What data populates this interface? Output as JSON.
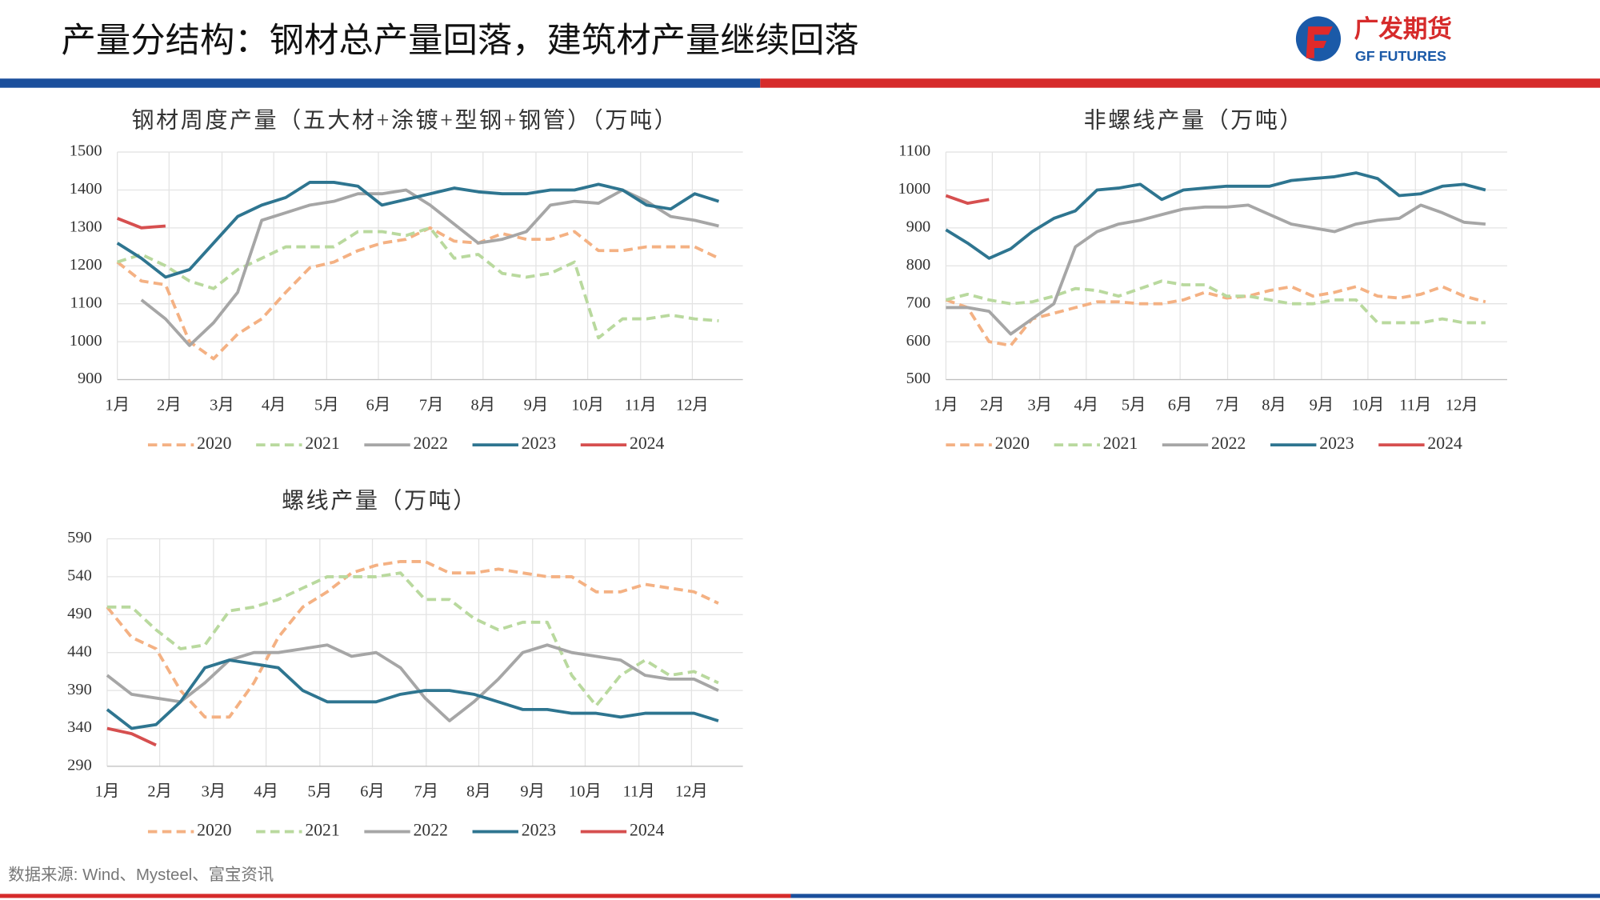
{
  "header": {
    "title": "产量分结构：钢材总产量回落，建筑材产量继续回落",
    "logo_cn": "广发期货",
    "logo_en": "GF FUTURES"
  },
  "source": "数据来源: Wind、Mysteel、富宝资讯",
  "chart_data": [
    {
      "type": "line",
      "title": "钢材周度产量（五大材+涂镀+型钢+钢管）（万吨）",
      "grid": true,
      "x": [
        1,
        3,
        5,
        7,
        9,
        11,
        13,
        15,
        17,
        19,
        21,
        23,
        25,
        27,
        29,
        31,
        33,
        35,
        37,
        39,
        41,
        43,
        45,
        47,
        49,
        51
      ],
      "xlim": [
        1,
        53
      ],
      "xticks": [
        {
          "value": 1,
          "label": "1月"
        },
        {
          "value": 5.3,
          "label": "2月"
        },
        {
          "value": 9.7,
          "label": "3月"
        },
        {
          "value": 14,
          "label": "4月"
        },
        {
          "value": 18.4,
          "label": "5月"
        },
        {
          "value": 22.7,
          "label": "6月"
        },
        {
          "value": 27.1,
          "label": "7月"
        },
        {
          "value": 31.4,
          "label": "8月"
        },
        {
          "value": 35.8,
          "label": "9月"
        },
        {
          "value": 40.1,
          "label": "10月"
        },
        {
          "value": 44.5,
          "label": "11月"
        },
        {
          "value": 48.8,
          "label": "12月"
        }
      ],
      "ylim": [
        900,
        1500
      ],
      "yticks": [
        900,
        1000,
        1100,
        1200,
        1300,
        1400,
        1500
      ],
      "series": [
        {
          "name": "2020",
          "color": "#F4B183",
          "dashed": true,
          "values": [
            1210,
            1160,
            1150,
            1000,
            955,
            1020,
            1060,
            1130,
            1195,
            1210,
            1240,
            1260,
            1270,
            1300,
            1265,
            1260,
            1285,
            1270,
            1270,
            1290,
            1240,
            1240,
            1250,
            1250,
            1250,
            1220
          ]
        },
        {
          "name": "2021",
          "color": "#B9D99E",
          "dashed": true,
          "values": [
            1210,
            1230,
            1200,
            1160,
            1140,
            1190,
            1220,
            1250,
            1250,
            1250,
            1290,
            1290,
            1280,
            1300,
            1220,
            1230,
            1180,
            1170,
            1180,
            1210,
            1010,
            1060,
            1060,
            1070,
            1060,
            1055
          ]
        },
        {
          "name": "2022",
          "color": "#A6A6A6",
          "dashed": false,
          "values": [
            null,
            1110,
            1060,
            990,
            1050,
            1130,
            1320,
            1340,
            1360,
            1370,
            1390,
            1390,
            1400,
            1360,
            1310,
            1260,
            1270,
            1290,
            1360,
            1370,
            1365,
            1400,
            1370,
            1330,
            1320,
            1305
          ]
        },
        {
          "name": "2023",
          "color": "#2E7590",
          "dashed": false,
          "values": [
            1260,
            1220,
            1170,
            1190,
            1260,
            1330,
            1360,
            1380,
            1420,
            1420,
            1410,
            1360,
            1375,
            1390,
            1405,
            1395,
            1390,
            1390,
            1400,
            1400,
            1415,
            1400,
            1360,
            1350,
            1390,
            1370
          ]
        },
        {
          "name": "2024",
          "color": "#D64F4F",
          "dashed": false,
          "values": [
            1325,
            1300,
            1305,
            null,
            null,
            null,
            null,
            null,
            null,
            null,
            null,
            null,
            null,
            null,
            null,
            null,
            null,
            null,
            null,
            null,
            null,
            null,
            null,
            null,
            null,
            null
          ]
        }
      ]
    },
    {
      "type": "line",
      "title": "非螺线产量（万吨）",
      "grid": true,
      "x": [
        1,
        3,
        5,
        7,
        9,
        11,
        13,
        15,
        17,
        19,
        21,
        23,
        25,
        27,
        29,
        31,
        33,
        35,
        37,
        39,
        41,
        43,
        45,
        47,
        49,
        51
      ],
      "xlim": [
        1,
        53
      ],
      "xticks": [
        {
          "value": 1,
          "label": "1月"
        },
        {
          "value": 5.3,
          "label": "2月"
        },
        {
          "value": 9.7,
          "label": "3月"
        },
        {
          "value": 14,
          "label": "4月"
        },
        {
          "value": 18.4,
          "label": "5月"
        },
        {
          "value": 22.7,
          "label": "6月"
        },
        {
          "value": 27.1,
          "label": "7月"
        },
        {
          "value": 31.4,
          "label": "8月"
        },
        {
          "value": 35.8,
          "label": "9月"
        },
        {
          "value": 40.1,
          "label": "10月"
        },
        {
          "value": 44.5,
          "label": "11月"
        },
        {
          "value": 48.8,
          "label": "12月"
        }
      ],
      "ylim": [
        500,
        1100
      ],
      "yticks": [
        500,
        600,
        700,
        800,
        900,
        1000,
        1100
      ],
      "series": [
        {
          "name": "2020",
          "color": "#F4B183",
          "dashed": true,
          "values": [
            710,
            690,
            600,
            590,
            660,
            675,
            690,
            705,
            705,
            700,
            700,
            710,
            730,
            715,
            720,
            735,
            745,
            720,
            730,
            745,
            720,
            715,
            725,
            745,
            720,
            705
          ]
        },
        {
          "name": "2021",
          "color": "#B9D99E",
          "dashed": true,
          "values": [
            710,
            725,
            710,
            700,
            705,
            720,
            740,
            735,
            720,
            740,
            760,
            750,
            750,
            720,
            720,
            710,
            700,
            700,
            710,
            710,
            650,
            650,
            650,
            660,
            650,
            650
          ]
        },
        {
          "name": "2022",
          "color": "#A6A6A6",
          "dashed": false,
          "values": [
            690,
            690,
            680,
            620,
            660,
            700,
            850,
            890,
            910,
            920,
            935,
            950,
            955,
            955,
            960,
            935,
            910,
            900,
            890,
            910,
            920,
            925,
            960,
            940,
            915,
            910
          ]
        },
        {
          "name": "2023",
          "color": "#2E7590",
          "dashed": false,
          "values": [
            895,
            860,
            820,
            845,
            890,
            925,
            945,
            1000,
            1005,
            1015,
            975,
            1000,
            1005,
            1010,
            1010,
            1010,
            1025,
            1030,
            1035,
            1045,
            1030,
            985,
            990,
            1010,
            1015,
            1000
          ]
        },
        {
          "name": "2024",
          "color": "#D64F4F",
          "dashed": false,
          "values": [
            985,
            965,
            975,
            null,
            null,
            null,
            null,
            null,
            null,
            null,
            null,
            null,
            null,
            null,
            null,
            null,
            null,
            null,
            null,
            null,
            null,
            null,
            null,
            null,
            null,
            null
          ]
        }
      ]
    },
    {
      "type": "line",
      "title": "螺线产量（万吨）",
      "grid": true,
      "x": [
        1,
        3,
        5,
        7,
        9,
        11,
        13,
        15,
        17,
        19,
        21,
        23,
        25,
        27,
        29,
        31,
        33,
        35,
        37,
        39,
        41,
        43,
        45,
        47,
        49,
        51
      ],
      "xlim": [
        1,
        53
      ],
      "xticks": [
        {
          "value": 1,
          "label": "1月"
        },
        {
          "value": 5.3,
          "label": "2月"
        },
        {
          "value": 9.7,
          "label": "3月"
        },
        {
          "value": 14,
          "label": "4月"
        },
        {
          "value": 18.4,
          "label": "5月"
        },
        {
          "value": 22.7,
          "label": "6月"
        },
        {
          "value": 27.1,
          "label": "7月"
        },
        {
          "value": 31.4,
          "label": "8月"
        },
        {
          "value": 35.8,
          "label": "9月"
        },
        {
          "value": 40.1,
          "label": "10月"
        },
        {
          "value": 44.5,
          "label": "11月"
        },
        {
          "value": 48.8,
          "label": "12月"
        }
      ],
      "ylim": [
        290,
        590
      ],
      "yticks": [
        290,
        340,
        390,
        440,
        490,
        540,
        590
      ],
      "series": [
        {
          "name": "2020",
          "color": "#F4B183",
          "dashed": true,
          "values": [
            500,
            460,
            445,
            390,
            355,
            355,
            400,
            460,
            500,
            520,
            545,
            555,
            560,
            560,
            545,
            545,
            550,
            545,
            540,
            540,
            520,
            520,
            530,
            525,
            520,
            505
          ]
        },
        {
          "name": "2021",
          "color": "#B9D99E",
          "dashed": true,
          "values": [
            500,
            500,
            470,
            445,
            450,
            495,
            500,
            510,
            525,
            540,
            540,
            540,
            545,
            510,
            510,
            485,
            470,
            480,
            480,
            410,
            370,
            410,
            430,
            410,
            415,
            400
          ]
        },
        {
          "name": "2022",
          "color": "#A6A6A6",
          "dashed": false,
          "values": [
            410,
            385,
            380,
            375,
            400,
            430,
            440,
            440,
            445,
            450,
            435,
            440,
            420,
            380,
            350,
            375,
            405,
            440,
            450,
            440,
            435,
            430,
            410,
            405,
            405,
            390
          ]
        },
        {
          "name": "2023",
          "color": "#2E7590",
          "dashed": false,
          "values": [
            365,
            340,
            345,
            375,
            420,
            430,
            425,
            420,
            390,
            375,
            375,
            375,
            385,
            390,
            390,
            385,
            375,
            365,
            365,
            360,
            360,
            355,
            360,
            360,
            360,
            350
          ]
        },
        {
          "name": "2024",
          "color": "#D64F4F",
          "dashed": false,
          "values": [
            340,
            333,
            318,
            null,
            null,
            null,
            null,
            null,
            null,
            null,
            null,
            null,
            null,
            null,
            null,
            null,
            null,
            null,
            null,
            null,
            null,
            null,
            null,
            null,
            null,
            null
          ]
        }
      ]
    }
  ]
}
